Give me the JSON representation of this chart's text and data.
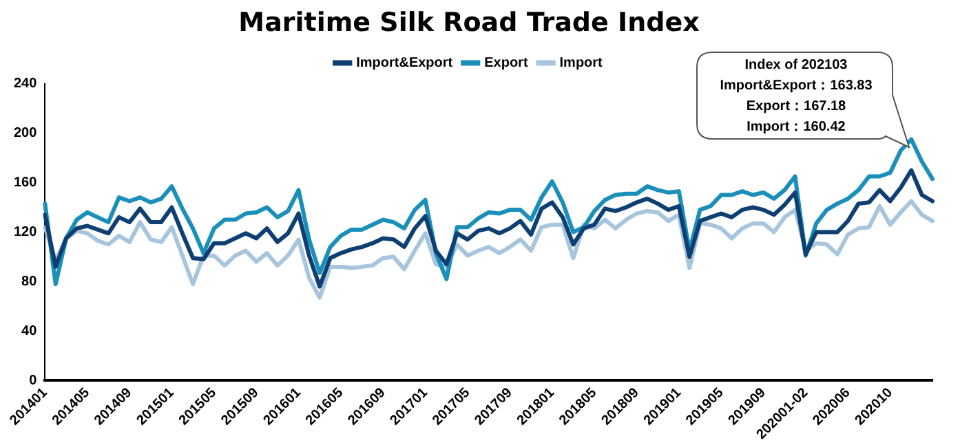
{
  "chart_data": {
    "type": "line",
    "title": "Maritime Silk Road Trade Index",
    "categories": [
      "201401",
      null,
      null,
      null,
      "201405",
      null,
      null,
      null,
      "201409",
      null,
      null,
      null,
      "201501",
      null,
      null,
      null,
      "201505",
      null,
      null,
      null,
      "201509",
      null,
      null,
      null,
      "201601",
      null,
      null,
      null,
      "201605",
      null,
      null,
      null,
      "201609",
      null,
      null,
      null,
      "201701",
      null,
      null,
      null,
      "201705",
      null,
      null,
      null,
      "201709",
      null,
      null,
      null,
      "201801",
      null,
      null,
      null,
      "201805",
      null,
      null,
      null,
      "201809",
      null,
      null,
      null,
      "201901",
      null,
      null,
      null,
      "201905",
      null,
      null,
      null,
      "201909",
      null,
      null,
      null,
      "202001-02",
      null,
      null,
      null,
      "202006",
      null,
      null,
      null,
      "202010",
      null,
      null,
      null,
      null
    ],
    "series": [
      {
        "name": "Import&Export",
        "color": "#0e3f73",
        "values": [
          134,
          92,
          115,
          123,
          125,
          122,
          119,
          132,
          128,
          139,
          128,
          128,
          140,
          119,
          99,
          98,
          111,
          111,
          115,
          119,
          115,
          123,
          112,
          119,
          135,
          101,
          76,
          99,
          103,
          106,
          108,
          111,
          115,
          114,
          108,
          123,
          133,
          105,
          94,
          119,
          114,
          121,
          123,
          119,
          123,
          129,
          118,
          139,
          144,
          132,
          110,
          123,
          126,
          139,
          137,
          140,
          144,
          147,
          143,
          138,
          141,
          100,
          129,
          132,
          135,
          132,
          138,
          140,
          138,
          134,
          142,
          152,
          102,
          120,
          120,
          120,
          129,
          143,
          144,
          154,
          145,
          156,
          170,
          150,
          145
        ]
      },
      {
        "name": "Export",
        "color": "#1a8fba",
        "values": [
          143,
          78,
          115,
          130,
          136,
          132,
          128,
          148,
          145,
          148,
          144,
          147,
          157,
          139,
          123,
          103,
          123,
          130,
          130,
          135,
          136,
          140,
          132,
          137,
          154,
          114,
          87,
          108,
          117,
          122,
          122,
          126,
          130,
          128,
          123,
          138,
          146,
          103,
          82,
          124,
          124,
          131,
          136,
          135,
          138,
          138,
          130,
          148,
          161,
          144,
          120,
          124,
          137,
          146,
          150,
          151,
          151,
          157,
          154,
          152,
          153,
          105,
          138,
          141,
          150,
          150,
          153,
          150,
          152,
          147,
          154,
          165,
          101,
          127,
          138,
          143,
          147,
          154,
          165,
          165,
          168,
          186,
          195,
          177,
          163
        ]
      },
      {
        "name": "Import",
        "color": "#a7c5dc",
        "values": [
          124,
          97,
          115,
          121,
          119,
          113,
          110,
          117,
          112,
          128,
          114,
          112,
          124,
          101,
          78,
          101,
          101,
          93,
          101,
          105,
          96,
          103,
          93,
          101,
          114,
          83,
          67,
          92,
          92,
          91,
          92,
          93,
          99,
          100,
          90,
          105,
          119,
          94,
          92,
          110,
          101,
          105,
          108,
          103,
          108,
          114,
          105,
          124,
          126,
          126,
          99,
          126,
          123,
          130,
          123,
          130,
          135,
          137,
          136,
          129,
          134,
          91,
          127,
          126,
          123,
          115,
          123,
          127,
          127,
          120,
          132,
          138,
          105,
          111,
          110,
          102,
          118,
          123,
          124,
          141,
          126,
          136,
          145,
          134,
          129
        ]
      }
    ],
    "ylim": [
      0,
      240
    ],
    "yticks": [
      0,
      40,
      80,
      120,
      160,
      200,
      240
    ],
    "grid": false,
    "legend": "top",
    "line_style": "solid",
    "marker": "none",
    "annotations": [
      "Index of 202103",
      "Import&Export：163.83",
      "Export：167.18",
      "Import：160.42"
    ]
  }
}
